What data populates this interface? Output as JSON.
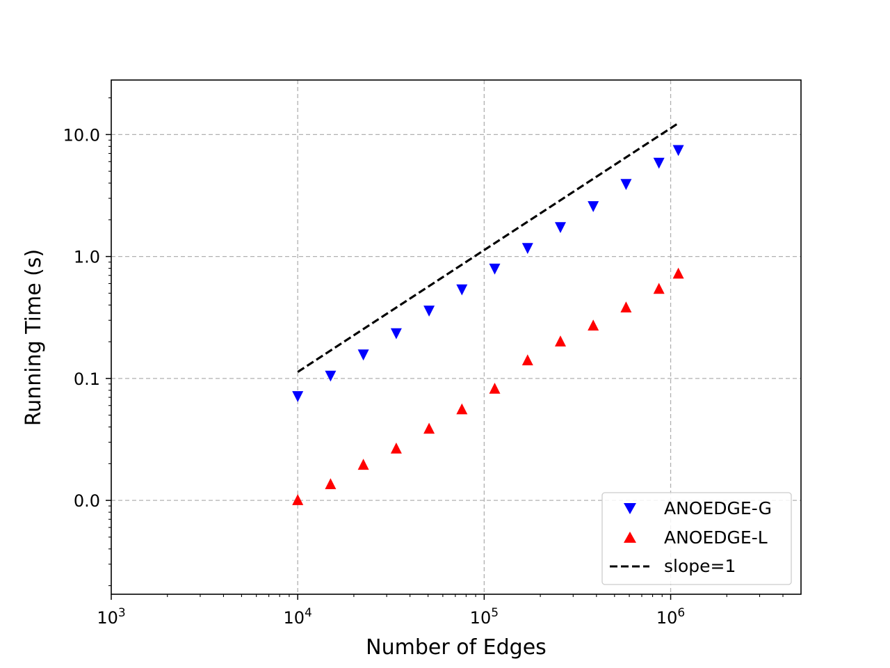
{
  "chart_data": {
    "type": "scatter",
    "title": "",
    "xlabel": "Number of Edges",
    "ylabel": "Running Time (s)",
    "xscale": "log",
    "yscale": "log",
    "xlim": [
      1000,
      5000000
    ],
    "ylim": [
      0.0017,
      28
    ],
    "x_ticks": [
      {
        "value": 1000,
        "base": "10",
        "exp": "3"
      },
      {
        "value": 10000,
        "base": "10",
        "exp": "4"
      },
      {
        "value": 100000,
        "base": "10",
        "exp": "5"
      },
      {
        "value": 1000000,
        "base": "10",
        "exp": "6"
      }
    ],
    "y_ticks": [
      {
        "value": 0.01,
        "label": "0.0"
      },
      {
        "value": 0.1,
        "label": "0.1"
      },
      {
        "value": 1,
        "label": "1.0"
      },
      {
        "value": 10,
        "label": "10.0"
      }
    ],
    "grid": true,
    "legend_position": "lower-right",
    "x": [
      10000,
      15000,
      22500,
      33750,
      50625,
      75938,
      113906,
      170859,
      256289,
      384434,
      576650,
      864976,
      1100000
    ],
    "series": [
      {
        "name": "ANOEDGE-G",
        "marker": "triangle-down",
        "color": "#0000ff",
        "values": [
          0.072,
          0.106,
          0.158,
          0.236,
          0.362,
          0.54,
          0.8,
          1.18,
          1.75,
          2.6,
          3.95,
          5.9,
          7.5
        ]
      },
      {
        "name": "ANOEDGE-L",
        "marker": "triangle-up",
        "color": "#ff0000",
        "values": [
          0.01,
          0.0135,
          0.0195,
          0.0265,
          0.0385,
          0.0555,
          0.082,
          0.14,
          0.2,
          0.27,
          0.38,
          0.54,
          0.72
        ]
      }
    ],
    "reference_lines": [
      {
        "name": "slope=1",
        "style": "dashed",
        "color": "#000000",
        "x": [
          10000,
          1100000
        ],
        "y": [
          0.113,
          12.4
        ]
      }
    ]
  }
}
